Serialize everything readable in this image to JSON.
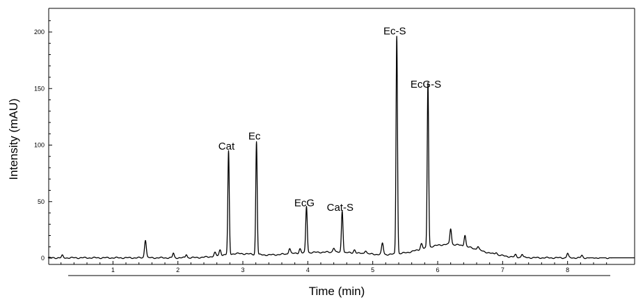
{
  "chart_data": {
    "type": "line",
    "title": "",
    "xlabel": "Time (min)",
    "ylabel": "Intensity (mAU)",
    "xlim": [
      0,
      8.7
    ],
    "ylim": [
      -3,
      210
    ],
    "x_ticks": [
      "1",
      "2",
      "3",
      "4",
      "5",
      "6",
      "7",
      "8"
    ],
    "y_ticks": [
      "0",
      "50",
      "100",
      "150",
      "200"
    ],
    "grid": false,
    "legend": "none",
    "line_color": "#000000",
    "peaks": [
      {
        "label": "",
        "time": 0.22,
        "height": 2,
        "width": 0.012
      },
      {
        "label": "",
        "time": 1.5,
        "height": 16,
        "width": 0.014
      },
      {
        "label": "",
        "time": 1.93,
        "height": 4,
        "width": 0.012
      },
      {
        "label": "",
        "time": 2.13,
        "height": 3,
        "width": 0.012
      },
      {
        "label": "",
        "time": 2.57,
        "height": 3,
        "width": 0.014
      },
      {
        "label": "",
        "time": 2.65,
        "height": 5,
        "width": 0.014
      },
      {
        "label": "Cat",
        "time": 2.78,
        "height": 91,
        "width": 0.011
      },
      {
        "label": "Ec",
        "time": 3.21,
        "height": 100,
        "width": 0.011
      },
      {
        "label": "",
        "time": 3.72,
        "height": 5,
        "width": 0.014
      },
      {
        "label": "",
        "time": 3.88,
        "height": 4,
        "width": 0.014
      },
      {
        "label": "EcG",
        "time": 3.98,
        "height": 41,
        "width": 0.012
      },
      {
        "label": "",
        "time": 4.4,
        "height": 4,
        "width": 0.015
      },
      {
        "label": "Cat-S",
        "time": 4.53,
        "height": 37,
        "width": 0.012
      },
      {
        "label": "",
        "time": 4.72,
        "height": 3,
        "width": 0.015
      },
      {
        "label": "",
        "time": 4.89,
        "height": 3,
        "width": 0.015
      },
      {
        "label": "",
        "time": 5.15,
        "height": 10,
        "width": 0.014
      },
      {
        "label": "Ec-S",
        "time": 5.37,
        "height": 193,
        "width": 0.011
      },
      {
        "label": "",
        "time": 5.75,
        "height": 5,
        "width": 0.015
      },
      {
        "label": "EcG-S",
        "time": 5.85,
        "height": 146,
        "width": 0.011
      },
      {
        "label": "",
        "time": 6.2,
        "height": 14,
        "width": 0.013
      },
      {
        "label": "",
        "time": 6.42,
        "height": 10,
        "width": 0.013
      },
      {
        "label": "",
        "time": 6.62,
        "height": 3,
        "width": 0.014
      },
      {
        "label": "",
        "time": 6.9,
        "height": 2,
        "width": 0.014
      },
      {
        "label": "",
        "time": 7.2,
        "height": 2,
        "width": 0.013
      },
      {
        "label": "",
        "time": 7.3,
        "height": 3,
        "width": 0.013
      },
      {
        "label": "",
        "time": 8.0,
        "height": 4,
        "width": 0.013
      },
      {
        "label": "",
        "time": 8.22,
        "height": 2,
        "width": 0.013
      }
    ],
    "baseline_bumps": [
      {
        "time": 2.9,
        "height": 3,
        "width": 0.25
      },
      {
        "time": 4.3,
        "height": 5,
        "width": 0.7
      },
      {
        "time": 6.1,
        "height": 10,
        "width": 0.4
      },
      {
        "time": 6.5,
        "height": 3,
        "width": 0.35
      }
    ]
  }
}
